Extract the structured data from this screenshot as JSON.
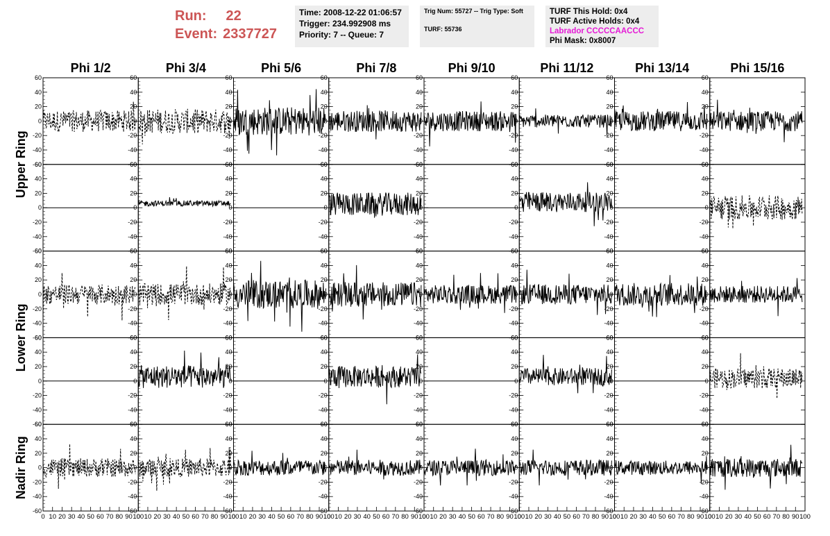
{
  "header": {
    "run_label": "Run:",
    "run_value": "22",
    "event_label": "Event:",
    "event_value": "2337727",
    "time": "Time: 2008-12-22 01:06:57",
    "trigger": "Trigger: 234.992908 ms",
    "priority": "Priority: 7 -- Queue: 7",
    "trig_num": "Trig Num: 55727 -- Trig Type: Soft",
    "turf": "TURF: 55736",
    "turf_hold": "TURF This Hold: 0x4",
    "turf_active": "TURF Active Holds: 0x4",
    "labrador": "Labrador CCCCCAACCC",
    "phi_mask": "Phi Mask: 0x8007",
    "labrador_color": "#e51ad6",
    "run_color": "#cc5555"
  },
  "chart_data": {
    "type": "line",
    "phi_labels": [
      "Phi 1/2",
      "Phi 3/4",
      "Phi 5/6",
      "Phi 7/8",
      "Phi 9/10",
      "Phi 11/12",
      "Phi 13/14",
      "Phi 15/16"
    ],
    "ring_labels": [
      {
        "text": "Upper Ring",
        "rows": [
          0,
          1
        ]
      },
      {
        "text": "Lower Ring",
        "rows": [
          2,
          3
        ]
      },
      {
        "text": "Nadir Ring",
        "rows": [
          4
        ]
      }
    ],
    "xlim": [
      0,
      100
    ],
    "ylim": [
      -60,
      60
    ],
    "xticks": [
      0,
      10,
      20,
      30,
      40,
      50,
      60,
      70,
      80,
      90,
      100
    ],
    "yticks": [
      60,
      40,
      20,
      0,
      -20,
      -40,
      -60
    ],
    "xtick_text": [
      "0",
      "10",
      "20",
      "30",
      "40",
      "50",
      "60",
      "70",
      "80",
      "90",
      "100"
    ],
    "ytick_text": [
      "60",
      "40",
      "20",
      "0",
      "-20",
      "-40",
      "-60"
    ],
    "panels": [
      [
        {
          "amp": 15,
          "dashed": true
        },
        {
          "amp": 17,
          "dashed": true
        },
        {
          "amp": 20,
          "dashed": false
        },
        {
          "amp": 15,
          "dashed": false
        },
        {
          "amp": 14,
          "dashed": false
        },
        {
          "amp": 9,
          "dashed": false
        },
        {
          "amp": 14,
          "dashed": false
        },
        {
          "amp": 14,
          "dashed": false
        }
      ],
      [
        {
          "amp": 0,
          "dashed": false
        },
        {
          "amp": 4,
          "dashed": false,
          "offset": 6
        },
        {
          "amp": 0,
          "dashed": false
        },
        {
          "amp": 16,
          "dashed": false,
          "offset": 5
        },
        {
          "amp": 0,
          "dashed": false
        },
        {
          "amp": 14,
          "dashed": false,
          "offset": 8
        },
        {
          "amp": 0,
          "dashed": false
        },
        {
          "amp": 17,
          "dashed": true
        }
      ],
      [
        {
          "amp": 14,
          "dashed": true
        },
        {
          "amp": 15,
          "dashed": true
        },
        {
          "amp": 20,
          "dashed": false
        },
        {
          "amp": 17,
          "dashed": false
        },
        {
          "amp": 13,
          "dashed": false
        },
        {
          "amp": 14,
          "dashed": false
        },
        {
          "amp": 16,
          "dashed": false
        },
        {
          "amp": 12,
          "dashed": false
        }
      ],
      [
        {
          "amp": 0,
          "dashed": false
        },
        {
          "amp": 16,
          "dashed": false,
          "offset": 6
        },
        {
          "amp": 0,
          "dashed": false
        },
        {
          "amp": 15,
          "dashed": false,
          "offset": 6
        },
        {
          "amp": 0,
          "dashed": false
        },
        {
          "amp": 12,
          "dashed": false,
          "offset": 6
        },
        {
          "amp": 0,
          "dashed": false
        },
        {
          "amp": 14,
          "dashed": true,
          "offset": 4
        }
      ],
      [
        {
          "amp": 13,
          "dashed": true
        },
        {
          "amp": 13,
          "dashed": true
        },
        {
          "amp": 11,
          "dashed": false
        },
        {
          "amp": 11,
          "dashed": false
        },
        {
          "amp": 11,
          "dashed": false
        },
        {
          "amp": 11,
          "dashed": false
        },
        {
          "amp": 10,
          "dashed": false
        },
        {
          "amp": 13,
          "dashed": false
        }
      ]
    ]
  }
}
